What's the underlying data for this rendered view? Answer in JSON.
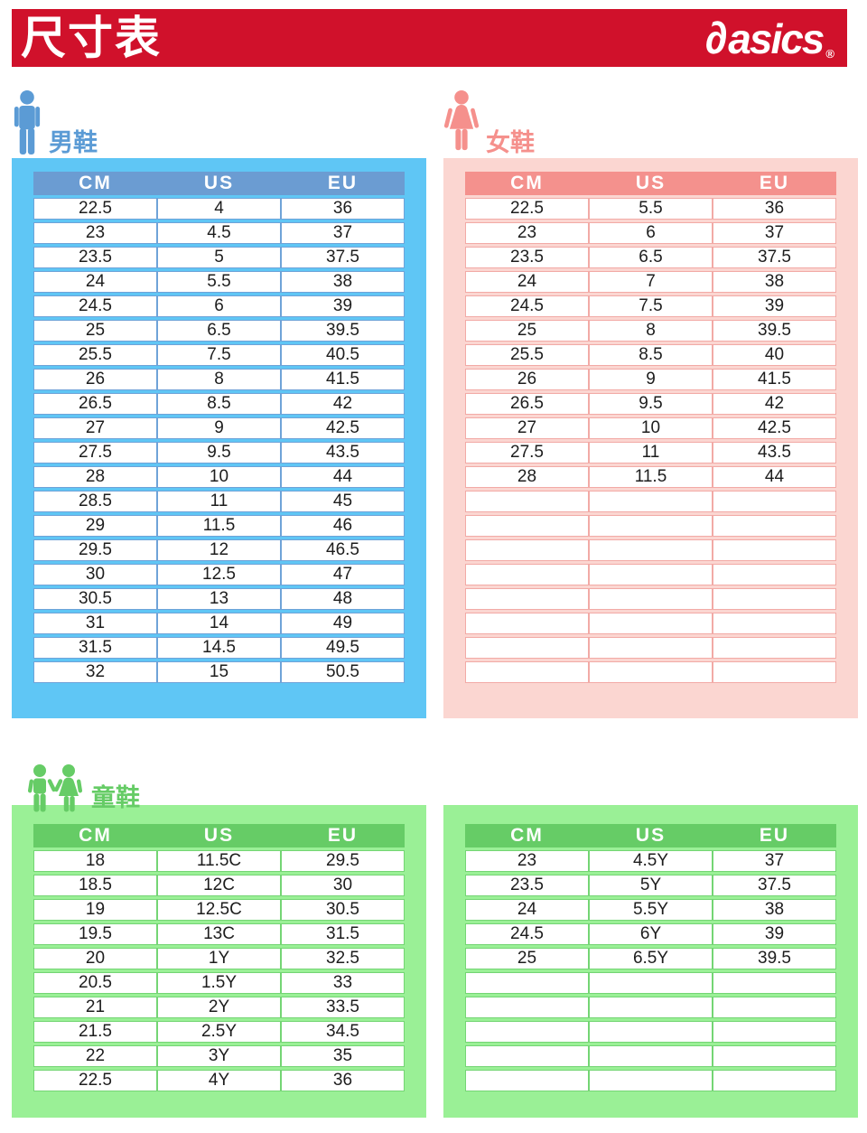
{
  "header": {
    "title": "尺寸表",
    "brand_mark": "∂",
    "brand": "asics",
    "registered": "®"
  },
  "colors": {
    "brand-red": "#d0112b",
    "men-accent": "#5b9bd5",
    "men-panel": "#5fc6f5",
    "men-header": "#6b9cd2",
    "men-border": "#6fa3d8",
    "women-accent": "#f5908c",
    "women-panel": "#fbd6d1",
    "women-header": "#f4918d",
    "women-border": "#f2aaa6",
    "kids-accent": "#66cc66",
    "kids-panel": "#9af096",
    "kids-header": "#66cc66",
    "kids-border": "#74d574",
    "cell-text": "#1d1d1d"
  },
  "sections": {
    "men": {
      "label": "男鞋",
      "columns": [
        "CM",
        "US",
        "EU"
      ],
      "rows": [
        [
          "22.5",
          "4",
          "36"
        ],
        [
          "23",
          "4.5",
          "37"
        ],
        [
          "23.5",
          "5",
          "37.5"
        ],
        [
          "24",
          "5.5",
          "38"
        ],
        [
          "24.5",
          "6",
          "39"
        ],
        [
          "25",
          "6.5",
          "39.5"
        ],
        [
          "25.5",
          "7.5",
          "40.5"
        ],
        [
          "26",
          "8",
          "41.5"
        ],
        [
          "26.5",
          "8.5",
          "42"
        ],
        [
          "27",
          "9",
          "42.5"
        ],
        [
          "27.5",
          "9.5",
          "43.5"
        ],
        [
          "28",
          "10",
          "44"
        ],
        [
          "28.5",
          "11",
          "45"
        ],
        [
          "29",
          "11.5",
          "46"
        ],
        [
          "29.5",
          "12",
          "46.5"
        ],
        [
          "30",
          "12.5",
          "47"
        ],
        [
          "30.5",
          "13",
          "48"
        ],
        [
          "31",
          "14",
          "49"
        ],
        [
          "31.5",
          "14.5",
          "49.5"
        ],
        [
          "32",
          "15",
          "50.5"
        ]
      ],
      "empty_rows": 0
    },
    "women": {
      "label": "女鞋",
      "columns": [
        "CM",
        "US",
        "EU"
      ],
      "rows": [
        [
          "22.5",
          "5.5",
          "36"
        ],
        [
          "23",
          "6",
          "37"
        ],
        [
          "23.5",
          "6.5",
          "37.5"
        ],
        [
          "24",
          "7",
          "38"
        ],
        [
          "24.5",
          "7.5",
          "39"
        ],
        [
          "25",
          "8",
          "39.5"
        ],
        [
          "25.5",
          "8.5",
          "40"
        ],
        [
          "26",
          "9",
          "41.5"
        ],
        [
          "26.5",
          "9.5",
          "42"
        ],
        [
          "27",
          "10",
          "42.5"
        ],
        [
          "27.5",
          "11",
          "43.5"
        ],
        [
          "28",
          "11.5",
          "44"
        ]
      ],
      "empty_rows": 8
    },
    "kids": {
      "label": "童鞋",
      "left_table": {
        "columns": [
          "CM",
          "US",
          "EU"
        ],
        "rows": [
          [
            "18",
            "11.5C",
            "29.5"
          ],
          [
            "18.5",
            "12C",
            "30"
          ],
          [
            "19",
            "12.5C",
            "30.5"
          ],
          [
            "19.5",
            "13C",
            "31.5"
          ],
          [
            "20",
            "1Y",
            "32.5"
          ],
          [
            "20.5",
            "1.5Y",
            "33"
          ],
          [
            "21",
            "2Y",
            "33.5"
          ],
          [
            "21.5",
            "2.5Y",
            "34.5"
          ],
          [
            "22",
            "3Y",
            "35"
          ],
          [
            "22.5",
            "4Y",
            "36"
          ]
        ],
        "empty_rows": 0
      },
      "right_table": {
        "columns": [
          "CM",
          "US",
          "EU"
        ],
        "rows": [
          [
            "23",
            "4.5Y",
            "37"
          ],
          [
            "23.5",
            "5Y",
            "37.5"
          ],
          [
            "24",
            "5.5Y",
            "38"
          ],
          [
            "24.5",
            "6Y",
            "39"
          ],
          [
            "25",
            "6.5Y",
            "39.5"
          ]
        ],
        "empty_rows": 5
      }
    }
  }
}
